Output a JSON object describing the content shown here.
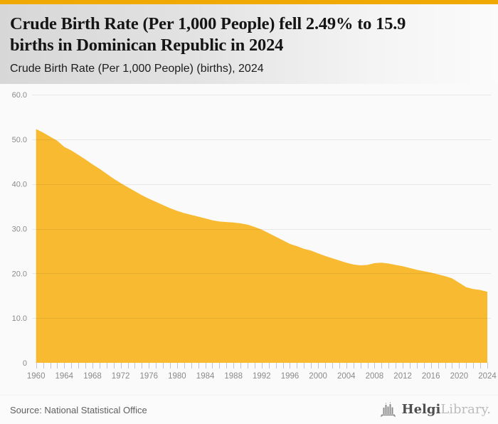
{
  "colors": {
    "accent_bar": "#f0a802",
    "area_fill": "#f8ba31",
    "chart_background": "#fafafa",
    "tick": "#bcc6da",
    "axis_label": "#8a8a8a"
  },
  "header": {
    "title": "Crude Birth Rate (Per 1,000 People) fell 2.49% to 15.9 births in Dominican Republic in 2024",
    "title_lines": [
      "Crude Birth Rate (Per 1,000 People) fell 2.49% to 15.9",
      "births in Dominican Republic in 2024"
    ],
    "subtitle": "Crude Birth Rate (Per 1,000 People) (births), 2024"
  },
  "chart_data": {
    "type": "area",
    "title": "Crude Birth Rate (Per 1,000 People) (births), 2024",
    "series_name": "Crude Birth Rate (Per 1,000 People)",
    "unit": "births",
    "xlim": [
      1960,
      2024
    ],
    "ylim": [
      0,
      60
    ],
    "grid": true,
    "x_minor_tick_step": 1,
    "x": [
      1960,
      1961,
      1962,
      1963,
      1964,
      1965,
      1966,
      1967,
      1968,
      1969,
      1970,
      1971,
      1972,
      1973,
      1974,
      1975,
      1976,
      1977,
      1978,
      1979,
      1980,
      1981,
      1982,
      1983,
      1984,
      1985,
      1986,
      1987,
      1988,
      1989,
      1990,
      1991,
      1992,
      1993,
      1994,
      1995,
      1996,
      1997,
      1998,
      1999,
      2000,
      2001,
      2002,
      2003,
      2004,
      2005,
      2006,
      2007,
      2008,
      2009,
      2010,
      2011,
      2012,
      2013,
      2014,
      2015,
      2016,
      2017,
      2018,
      2019,
      2020,
      2021,
      2022,
      2023,
      2024
    ],
    "values": [
      52.3,
      51.5,
      50.6,
      49.7,
      48.3,
      47.5,
      46.5,
      45.5,
      44.4,
      43.4,
      42.3,
      41.2,
      40.2,
      39.3,
      38.4,
      37.5,
      36.7,
      36.0,
      35.3,
      34.6,
      34.0,
      33.5,
      33.1,
      32.7,
      32.3,
      31.9,
      31.6,
      31.5,
      31.4,
      31.2,
      30.9,
      30.4,
      29.8,
      29.0,
      28.2,
      27.4,
      26.6,
      26.1,
      25.5,
      25.1,
      24.5,
      23.9,
      23.4,
      22.9,
      22.4,
      22.0,
      21.8,
      21.9,
      22.3,
      22.4,
      22.2,
      21.9,
      21.6,
      21.2,
      20.8,
      20.5,
      20.2,
      19.8,
      19.4,
      18.9,
      17.9,
      16.9,
      16.5,
      16.3,
      15.9
    ],
    "y_ticks": [
      {
        "value": 0,
        "label": "0"
      },
      {
        "value": 10,
        "label": "10.0"
      },
      {
        "value": 20,
        "label": "20.0"
      },
      {
        "value": 30,
        "label": "30.0"
      },
      {
        "value": 40,
        "label": "40.0"
      },
      {
        "value": 50,
        "label": "50.0"
      },
      {
        "value": 60,
        "label": "60.0"
      }
    ],
    "x_major_ticks": [
      {
        "year": 1960,
        "label": "1960"
      },
      {
        "year": 1964,
        "label": "1964"
      },
      {
        "year": 1968,
        "label": "1968"
      },
      {
        "year": 1972,
        "label": "1972"
      },
      {
        "year": 1976,
        "label": "1976"
      },
      {
        "year": 1980,
        "label": "1980"
      },
      {
        "year": 1984,
        "label": "1984"
      },
      {
        "year": 1988,
        "label": "1988"
      },
      {
        "year": 1992,
        "label": "1992"
      },
      {
        "year": 1996,
        "label": "1996"
      },
      {
        "year": 2000,
        "label": "2000"
      },
      {
        "year": 2004,
        "label": "2004"
      },
      {
        "year": 2008,
        "label": "2008"
      },
      {
        "year": 2012,
        "label": "2012"
      },
      {
        "year": 2016,
        "label": "2016"
      },
      {
        "year": 2020,
        "label": "2020"
      },
      {
        "year": 2024,
        "label": "2024"
      }
    ]
  },
  "footer": {
    "source": "Source: National Statistical Office",
    "logo": {
      "brand_primary": "Helgi",
      "brand_secondary": "Library."
    }
  }
}
